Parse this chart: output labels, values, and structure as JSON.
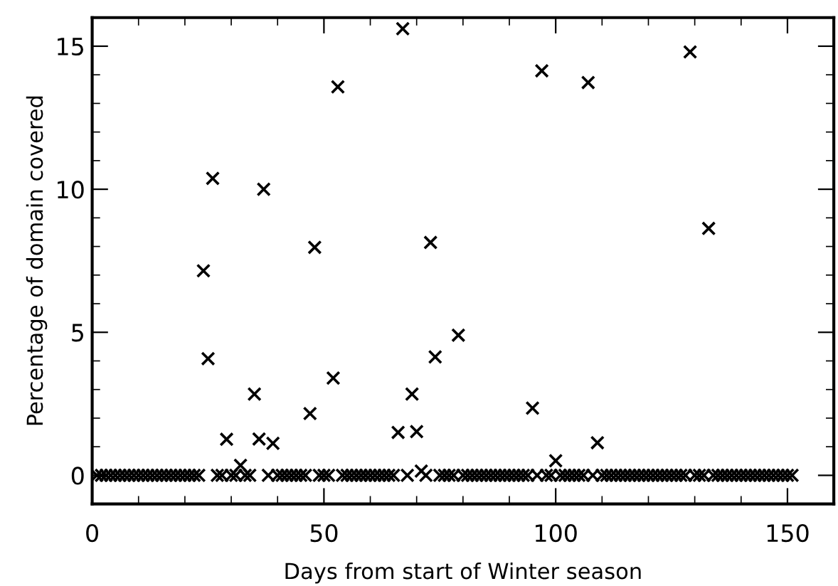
{
  "chart_data": {
    "type": "scatter",
    "xlabel": "Days from start of Winter season",
    "ylabel": "Percentage of domain covered",
    "x": [
      1,
      2,
      3,
      4,
      5,
      6,
      7,
      8,
      9,
      10,
      11,
      12,
      13,
      14,
      15,
      16,
      17,
      18,
      19,
      20,
      21,
      22,
      23,
      24,
      25,
      26,
      27,
      28,
      29,
      30,
      31,
      32,
      33,
      34,
      35,
      36,
      37,
      38,
      39,
      40,
      41,
      42,
      43,
      44,
      45,
      46,
      47,
      48,
      49,
      50,
      51,
      52,
      53,
      54,
      55,
      56,
      57,
      58,
      59,
      60,
      61,
      62,
      63,
      64,
      65,
      66,
      67,
      68,
      69,
      70,
      71,
      72,
      73,
      74,
      75,
      76,
      77,
      78,
      79,
      80,
      81,
      82,
      83,
      84,
      85,
      86,
      87,
      88,
      89,
      90,
      91,
      92,
      93,
      94,
      95,
      96,
      97,
      98,
      99,
      100,
      101,
      102,
      103,
      104,
      105,
      106,
      107,
      108,
      109,
      110,
      111,
      112,
      113,
      114,
      115,
      116,
      117,
      118,
      119,
      120,
      121,
      122,
      123,
      124,
      125,
      126,
      127,
      128,
      129,
      130,
      131,
      132,
      133,
      134,
      135,
      136,
      137,
      138,
      139,
      140,
      141,
      142,
      143,
      144,
      145,
      146,
      147,
      148,
      149,
      150,
      151
    ],
    "values": [
      0,
      0,
      0,
      0,
      0,
      0,
      0,
      0,
      0,
      0,
      0,
      0,
      0,
      0,
      0,
      0,
      0,
      0,
      0,
      0,
      0,
      0,
      0,
      7.15,
      4.08,
      10.38,
      0,
      0,
      1.26,
      0,
      0,
      0.35,
      0,
      0,
      2.84,
      1.27,
      10.0,
      0,
      1.12,
      0,
      0,
      0,
      0,
      0,
      0,
      0,
      2.16,
      7.97,
      0,
      0,
      0,
      3.4,
      13.58,
      0,
      0,
      0,
      0,
      0,
      0,
      0,
      0,
      0,
      0,
      0,
      0,
      1.5,
      15.61,
      0,
      2.84,
      1.53,
      0.15,
      0,
      8.14,
      4.14,
      0,
      0,
      0,
      0,
      4.9,
      0,
      0,
      0,
      0,
      0,
      0,
      0,
      0,
      0,
      0,
      0,
      0,
      0,
      0,
      0,
      2.35,
      0,
      14.14,
      0,
      0,
      0.51,
      0,
      0,
      0,
      0,
      0,
      0,
      13.73,
      0,
      1.14,
      0,
      0,
      0,
      0,
      0,
      0,
      0,
      0,
      0,
      0,
      0,
      0,
      0,
      0,
      0,
      0,
      0,
      0,
      0,
      14.8,
      0,
      0,
      0,
      8.63,
      0,
      0,
      0,
      0,
      0,
      0,
      0,
      0,
      0,
      0,
      0,
      0,
      0,
      0,
      0,
      0,
      0,
      0
    ],
    "color": "#000000",
    "marker": "cross",
    "xlim": [
      0,
      160
    ],
    "ylim": [
      -1,
      16
    ],
    "xticks": [
      0,
      {
        "value": 10,
        "label": null
      },
      {
        "value": 20,
        "label": null
      },
      {
        "value": 30,
        "label": null
      },
      {
        "value": 40,
        "label": null
      },
      50,
      {
        "value": 60,
        "label": null
      },
      {
        "value": 70,
        "label": null
      },
      {
        "value": 80,
        "label": null
      },
      {
        "value": 90,
        "label": null
      },
      100,
      {
        "value": 110,
        "label": null
      },
      {
        "value": 120,
        "label": null
      },
      {
        "value": 130,
        "label": null
      },
      {
        "value": 140,
        "label": null
      },
      150
    ],
    "yticks": [
      0,
      {
        "value": 1,
        "label": null
      },
      {
        "value": 2,
        "label": null
      },
      {
        "value": 3,
        "label": null
      },
      {
        "value": 4,
        "label": null
      },
      5,
      {
        "value": 6,
        "label": null
      },
      {
        "value": 7,
        "label": null
      },
      {
        "value": 8,
        "label": null
      },
      {
        "value": 9,
        "label": null
      },
      10,
      {
        "value": 11,
        "label": null
      },
      {
        "value": 12,
        "label": null
      },
      {
        "value": 13,
        "label": null
      },
      {
        "value": 14,
        "label": null
      },
      15
    ],
    "grid": false,
    "legend": false
  }
}
